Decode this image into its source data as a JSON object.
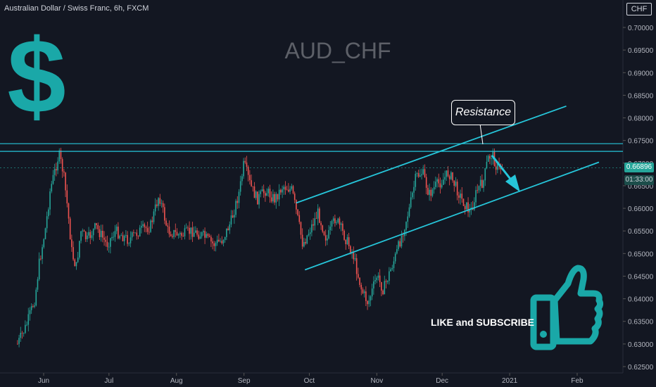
{
  "header": {
    "symbol_title": "Australian Dollar / Swiss Franc, 6h, FXCM",
    "currency": "CHF"
  },
  "watermark": "AUD_CHF",
  "annotations": {
    "resistance_label": "Resistance",
    "cta": "LIKE and SUBSCRIBE"
  },
  "price_tags": {
    "last_price": "0.66896",
    "countdown": "01:33:00"
  },
  "colors": {
    "background": "#131722",
    "accent": "#26c6da",
    "up": "#26a69a",
    "down": "#ef5350",
    "axis_text": "#b2b5be"
  },
  "icons": [
    "dollar-sign-icon",
    "thumbs-up-icon",
    "arrow-down-right-icon"
  ],
  "chart_data": {
    "type": "candlestick",
    "x_ticks": [
      "Jun",
      "Jul",
      "Aug",
      "Sep",
      "Oct",
      "Nov",
      "Dec",
      "2021",
      "Feb"
    ],
    "y_ticks": [
      "0.70000",
      "0.69500",
      "0.69000",
      "0.68500",
      "0.68000",
      "0.67500",
      "0.67000",
      "0.66500",
      "0.66000",
      "0.65500",
      "0.65000",
      "0.64500",
      "0.64000",
      "0.63500",
      "0.63000",
      "0.62500"
    ],
    "ylim": [
      0.625,
      0.706
    ],
    "last_price": 0.66896,
    "path_points": [
      {
        "x": "May 20",
        "y": 0.63
      },
      {
        "x": "May 24",
        "y": 0.634
      },
      {
        "x": "May 28",
        "y": 0.64
      },
      {
        "x": "May 30",
        "y": 0.648
      },
      {
        "x": "Jun 2",
        "y": 0.656
      },
      {
        "x": "Jun 4",
        "y": 0.664
      },
      {
        "x": "Jun 6",
        "y": 0.668
      },
      {
        "x": "Jun 8",
        "y": 0.672
      },
      {
        "x": "Jun 10",
        "y": 0.668
      },
      {
        "x": "Jun 12",
        "y": 0.66
      },
      {
        "x": "Jun 14",
        "y": 0.65
      },
      {
        "x": "Jun 16",
        "y": 0.647
      },
      {
        "x": "Jun 18",
        "y": 0.655
      },
      {
        "x": "Jun 21",
        "y": 0.653
      },
      {
        "x": "Jun 25",
        "y": 0.656
      },
      {
        "x": "Jun 30",
        "y": 0.652
      },
      {
        "x": "Jul 4",
        "y": 0.655
      },
      {
        "x": "Jul 10",
        "y": 0.653
      },
      {
        "x": "Jul 15",
        "y": 0.655
      },
      {
        "x": "Jul 20",
        "y": 0.656
      },
      {
        "x": "Jul 24",
        "y": 0.663
      },
      {
        "x": "Jul 28",
        "y": 0.655
      },
      {
        "x": "Aug 3",
        "y": 0.654
      },
      {
        "x": "Aug 8",
        "y": 0.655
      },
      {
        "x": "Aug 13",
        "y": 0.654
      },
      {
        "x": "Aug 18",
        "y": 0.652
      },
      {
        "x": "Aug 22",
        "y": 0.653
      },
      {
        "x": "Aug 26",
        "y": 0.657
      },
      {
        "x": "Aug 30",
        "y": 0.664
      },
      {
        "x": "Sep 1",
        "y": 0.67
      },
      {
        "x": "Sep 4",
        "y": 0.665
      },
      {
        "x": "Sep 7",
        "y": 0.662
      },
      {
        "x": "Sep 11",
        "y": 0.664
      },
      {
        "x": "Sep 15",
        "y": 0.662
      },
      {
        "x": "Sep 19",
        "y": 0.665
      },
      {
        "x": "Sep 23",
        "y": 0.664
      },
      {
        "x": "Sep 26",
        "y": 0.657
      },
      {
        "x": "Sep 28",
        "y": 0.652
      },
      {
        "x": "Oct 1",
        "y": 0.655
      },
      {
        "x": "Oct 5",
        "y": 0.659
      },
      {
        "x": "Oct 9",
        "y": 0.653
      },
      {
        "x": "Oct 13",
        "y": 0.658
      },
      {
        "x": "Oct 17",
        "y": 0.654
      },
      {
        "x": "Oct 21",
        "y": 0.65
      },
      {
        "x": "Oct 25",
        "y": 0.642
      },
      {
        "x": "Oct 28",
        "y": 0.639
      },
      {
        "x": "Nov 1",
        "y": 0.645
      },
      {
        "x": "Nov 4",
        "y": 0.642
      },
      {
        "x": "Nov 7",
        "y": 0.646
      },
      {
        "x": "Nov 10",
        "y": 0.65
      },
      {
        "x": "Nov 13",
        "y": 0.655
      },
      {
        "x": "Nov 16",
        "y": 0.66
      },
      {
        "x": "Nov 19",
        "y": 0.667
      },
      {
        "x": "Nov 22",
        "y": 0.668
      },
      {
        "x": "Nov 25",
        "y": 0.663
      },
      {
        "x": "Nov 28",
        "y": 0.665
      },
      {
        "x": "Dec 1",
        "y": 0.666
      },
      {
        "x": "Dec 4",
        "y": 0.668
      },
      {
        "x": "Dec 7",
        "y": 0.665
      },
      {
        "x": "Dec 10",
        "y": 0.662
      },
      {
        "x": "Dec 14",
        "y": 0.659
      },
      {
        "x": "Dec 17",
        "y": 0.664
      },
      {
        "x": "Dec 20",
        "y": 0.666
      },
      {
        "x": "Dec 22",
        "y": 0.671
      },
      {
        "x": "Dec 24",
        "y": 0.672
      },
      {
        "x": "Dec 26",
        "y": 0.669
      },
      {
        "x": "Dec 29",
        "y": 0.669
      }
    ],
    "horizontal_lines": [
      0.6743,
      0.6726
    ],
    "trend_lines": [
      {
        "name": "channel-upper",
        "from": {
          "x": "Sep 25",
          "y": 0.6612
        },
        "to": {
          "x": "Jan 27",
          "y": 0.6826
        }
      },
      {
        "name": "channel-lower",
        "from": {
          "x": "Sep 29",
          "y": 0.6464
        },
        "to": {
          "x": "Feb 11",
          "y": 0.6702
        }
      }
    ]
  }
}
